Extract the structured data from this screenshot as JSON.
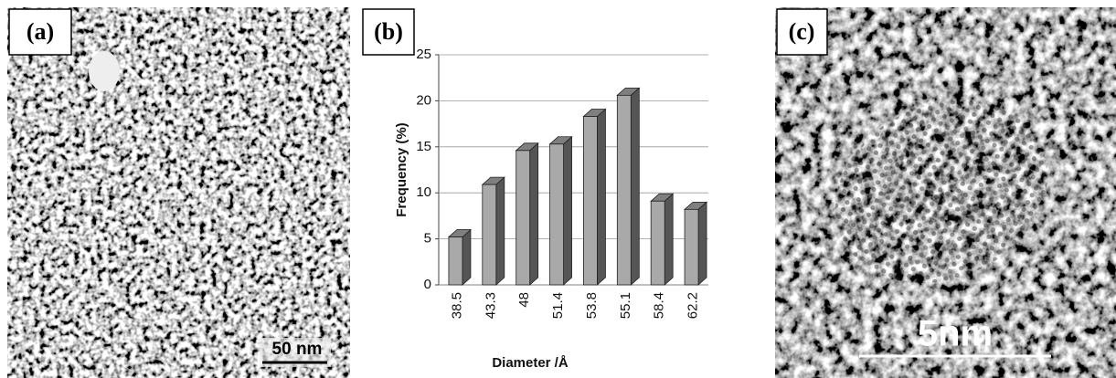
{
  "panels": {
    "a": {
      "label": "(a)",
      "scale_bar": "50 nm"
    },
    "b": {
      "label": "(b)"
    },
    "c": {
      "label": "(c)",
      "scale_bar": "5nm"
    }
  },
  "chart_data": {
    "type": "bar",
    "x_label": "Diameter /Å",
    "y_label": "Frequency (%)",
    "categories": [
      "38.5",
      "43.3",
      "48",
      "51.4",
      "53.8",
      "55.1",
      "58.4",
      "62.2"
    ],
    "values": [
      5.2,
      10.9,
      14.6,
      15.3,
      18.3,
      20.6,
      9.1,
      8.2
    ],
    "color": "#a9a9a9",
    "ylim": [
      0,
      25
    ],
    "yticks": [
      0,
      5,
      10,
      15,
      20,
      25
    ],
    "grid": true
  }
}
